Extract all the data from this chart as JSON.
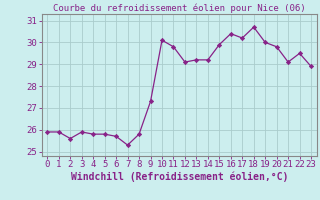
{
  "title": "Courbe du refroidissement éolien pour Nice (06)",
  "xlabel": "Windchill (Refroidissement éolien,°C)",
  "x": [
    0,
    1,
    2,
    3,
    4,
    5,
    6,
    7,
    8,
    9,
    10,
    11,
    12,
    13,
    14,
    15,
    16,
    17,
    18,
    19,
    20,
    21,
    22,
    23
  ],
  "y": [
    25.9,
    25.9,
    25.6,
    25.9,
    25.8,
    25.8,
    25.7,
    25.3,
    25.8,
    27.3,
    30.1,
    29.8,
    29.1,
    29.2,
    29.2,
    29.9,
    30.4,
    30.2,
    30.7,
    30.0,
    29.8,
    29.1,
    29.5,
    28.9
  ],
  "line_color": "#882288",
  "marker_color": "#882288",
  "bg_color": "#cceeee",
  "grid_color": "#aacccc",
  "axis_color": "#888888",
  "tick_color": "#882288",
  "label_color": "#882288",
  "ylim": [
    24.8,
    31.3
  ],
  "yticks": [
    25,
    26,
    27,
    28,
    29,
    30,
    31
  ],
  "title_fontsize": 6.5,
  "label_fontsize": 7,
  "tick_fontsize": 6.5
}
